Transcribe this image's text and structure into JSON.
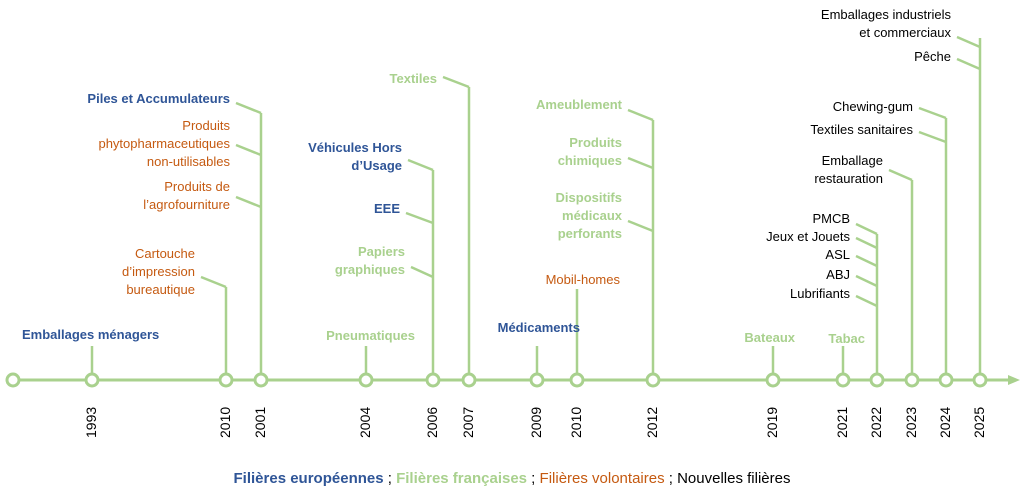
{
  "colors": {
    "line": "#A9D18E",
    "europeennes": "#2F5597",
    "francaises": "#A9D18E",
    "volontaires": "#C55A11",
    "nouvelles": "#000000"
  },
  "years": [
    "1993",
    "2010",
    "2001",
    "2004",
    "2006",
    "2007",
    "2009",
    "2010",
    "2012",
    "2019",
    "2021",
    "2022",
    "2023",
    "2024",
    "2025"
  ],
  "labels": [
    {
      "text": "Emballages ménagers",
      "category": "europeennes",
      "year_index": 0
    },
    {
      "text": "Cartouche\nd’impression\nbureautique",
      "category": "volontaires",
      "year_index": 1
    },
    {
      "text": "Piles et Accumulateurs",
      "category": "europeennes",
      "year_index": 2
    },
    {
      "text": "Produits\nphytopharmaceutiques\nnon-utilisables",
      "category": "volontaires",
      "year_index": 2
    },
    {
      "text": "Produits de\nl’agrofourniture",
      "category": "volontaires",
      "year_index": 2
    },
    {
      "text": "Pneumatiques",
      "category": "francaises",
      "year_index": 3
    },
    {
      "text": "Véhicules Hors\nd’Usage",
      "category": "europeennes",
      "year_index": 4
    },
    {
      "text": "EEE",
      "category": "europeennes",
      "year_index": 4
    },
    {
      "text": "Papiers\ngraphiques",
      "category": "francaises",
      "year_index": 4
    },
    {
      "text": "Textiles",
      "category": "francaises",
      "year_index": 5
    },
    {
      "text": "Médicaments",
      "category": "europeennes",
      "year_index": 6
    },
    {
      "text": "Mobil-homes",
      "category": "volontaires",
      "year_index": 7
    },
    {
      "text": "Ameublement",
      "category": "francaises",
      "year_index": 8
    },
    {
      "text": "Produits\nchimiques",
      "category": "francaises",
      "year_index": 8
    },
    {
      "text": "Dispositifs\nmédicaux\nperforants",
      "category": "francaises",
      "year_index": 8
    },
    {
      "text": "Bateaux",
      "category": "francaises",
      "year_index": 9
    },
    {
      "text": "Tabac",
      "category": "francaises",
      "year_index": 10
    },
    {
      "text": "PMCB",
      "category": "nouvelles",
      "year_index": 11
    },
    {
      "text": "Jeux et Jouets",
      "category": "nouvelles",
      "year_index": 11
    },
    {
      "text": "ASL",
      "category": "nouvelles",
      "year_index": 11
    },
    {
      "text": "ABJ",
      "category": "nouvelles",
      "year_index": 11
    },
    {
      "text": "Lubrifiants",
      "category": "nouvelles",
      "year_index": 11
    },
    {
      "text": "Emballage\nrestauration",
      "category": "nouvelles",
      "year_index": 12
    },
    {
      "text": "Chewing-gum",
      "category": "nouvelles",
      "year_index": 13
    },
    {
      "text": "Textiles sanitaires",
      "category": "nouvelles",
      "year_index": 13
    },
    {
      "text": "Emballages industriels\net commerciaux",
      "category": "nouvelles",
      "year_index": 14
    },
    {
      "text": "Pêche",
      "category": "nouvelles",
      "year_index": 14
    }
  ],
  "legend": {
    "europeennes": "Filières européennes",
    "sep1": " ; ",
    "francaises": "Filières françaises",
    "sep2": " ; ",
    "volontaires": "Filières volontaires",
    "sep3": " ; ",
    "nouvelles": "Nouvelles filières"
  }
}
